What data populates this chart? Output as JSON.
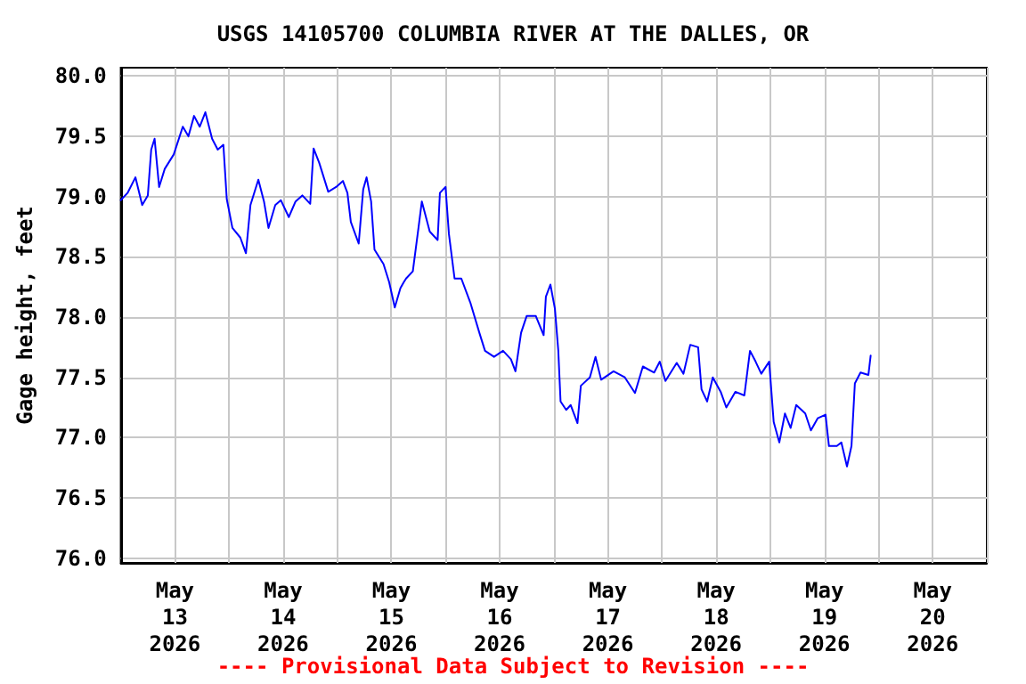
{
  "chart_data": {
    "type": "line",
    "title": "USGS 14105700 COLUMBIA RIVER AT THE DALLES, OR",
    "ylabel": "Gage height, feet",
    "annotations": [
      "---- Provisional Data Subject to Revision ----"
    ],
    "xlim": [
      "2026-05-13T00:00",
      "2026-05-21T00:00"
    ],
    "xticks": [
      {
        "value": "2026-05-13T00:00",
        "label": null
      },
      {
        "value": "2026-05-13T12:00",
        "label": "May\n13\n2026"
      },
      {
        "value": "2026-05-14T00:00",
        "label": null
      },
      {
        "value": "2026-05-14T12:00",
        "label": "May\n14\n2026"
      },
      {
        "value": "2026-05-15T00:00",
        "label": null
      },
      {
        "value": "2026-05-15T12:00",
        "label": "May\n15\n2026"
      },
      {
        "value": "2026-05-16T00:00",
        "label": null
      },
      {
        "value": "2026-05-16T12:00",
        "label": "May\n16\n2026"
      },
      {
        "value": "2026-05-17T00:00",
        "label": null
      },
      {
        "value": "2026-05-17T12:00",
        "label": "May\n17\n2026"
      },
      {
        "value": "2026-05-18T00:00",
        "label": null
      },
      {
        "value": "2026-05-18T12:00",
        "label": "May\n18\n2026"
      },
      {
        "value": "2026-05-19T00:00",
        "label": null
      },
      {
        "value": "2026-05-19T12:00",
        "label": "May\n19\n2026"
      },
      {
        "value": "2026-05-20T00:00",
        "label": null
      },
      {
        "value": "2026-05-20T12:00",
        "label": "May\n20\n2026"
      },
      {
        "value": "2026-05-21T00:00",
        "label": null
      }
    ],
    "ylim": [
      75.96,
      80.07
    ],
    "yticks": [
      {
        "value": 76,
        "label": "76.0"
      },
      {
        "value": 76.5,
        "label": "76.5"
      },
      {
        "value": 77,
        "label": "77.0"
      },
      {
        "value": 77.5,
        "label": "77.5"
      },
      {
        "value": 78,
        "label": "78.0"
      },
      {
        "value": 78.5,
        "label": "78.5"
      },
      {
        "value": 79,
        "label": "79.0"
      },
      {
        "value": 79.5,
        "label": "79.5"
      },
      {
        "value": 80,
        "label": "80.0"
      }
    ],
    "grid": true,
    "marker": "none",
    "line_style": "solid",
    "series": [
      {
        "color": "#0000ff",
        "x": [
          "2026-05-13T00:00",
          "2026-05-13T01:30",
          "2026-05-13T03:15",
          "2026-05-13T04:45",
          "2026-05-13T06:00",
          "2026-05-13T06:45",
          "2026-05-13T07:30",
          "2026-05-13T08:30",
          "2026-05-13T09:45",
          "2026-05-13T11:45",
          "2026-05-13T13:45",
          "2026-05-13T15:00",
          "2026-05-13T16:15",
          "2026-05-13T17:30",
          "2026-05-13T18:45",
          "2026-05-13T20:15",
          "2026-05-13T21:30",
          "2026-05-13T22:45",
          "2026-05-13T23:30",
          "2026-05-14T00:45",
          "2026-05-14T02:30",
          "2026-05-14T03:45",
          "2026-05-14T04:45",
          "2026-05-14T06:30",
          "2026-05-14T07:45",
          "2026-05-14T08:45",
          "2026-05-14T10:15",
          "2026-05-14T11:30",
          "2026-05-14T13:15",
          "2026-05-14T14:45",
          "2026-05-14T16:15",
          "2026-05-14T18:00",
          "2026-05-14T18:45",
          "2026-05-14T20:00",
          "2026-05-14T22:00",
          "2026-05-14T23:45",
          "2026-05-15T01:15",
          "2026-05-15T02:15",
          "2026-05-15T03:00",
          "2026-05-15T04:45",
          "2026-05-15T05:45",
          "2026-05-15T06:30",
          "2026-05-15T07:30",
          "2026-05-15T08:15",
          "2026-05-15T10:15",
          "2026-05-15T11:30",
          "2026-05-15T12:45",
          "2026-05-15T14:00",
          "2026-05-15T14:45",
          "2026-05-15T15:15",
          "2026-05-15T16:45",
          "2026-05-15T18:00",
          "2026-05-15T18:45",
          "2026-05-15T20:30",
          "2026-05-15T22:15",
          "2026-05-15T22:45",
          "2026-05-16T00:00",
          "2026-05-16T00:45",
          "2026-05-16T02:00",
          "2026-05-16T03:30",
          "2026-05-16T05:30",
          "2026-05-16T07:30",
          "2026-05-16T08:45",
          "2026-05-16T10:45",
          "2026-05-16T12:45",
          "2026-05-16T14:30",
          "2026-05-16T15:30",
          "2026-05-16T16:45",
          "2026-05-16T18:00",
          "2026-05-16T20:00",
          "2026-05-16T21:45",
          "2026-05-16T22:15",
          "2026-05-16T23:15",
          "2026-05-17T00:15",
          "2026-05-17T01:00",
          "2026-05-17T01:30",
          "2026-05-17T02:45",
          "2026-05-17T03:45",
          "2026-05-17T05:15",
          "2026-05-17T06:00",
          "2026-05-17T08:00",
          "2026-05-17T09:15",
          "2026-05-17T10:30",
          "2026-05-17T13:15",
          "2026-05-17T15:45",
          "2026-05-17T18:00",
          "2026-05-17T19:45",
          "2026-05-17T22:15",
          "2026-05-17T23:30",
          "2026-05-18T00:45",
          "2026-05-18T03:15",
          "2026-05-18T04:45",
          "2026-05-18T06:15",
          "2026-05-18T08:00",
          "2026-05-18T08:45",
          "2026-05-18T10:00",
          "2026-05-18T11:15",
          "2026-05-18T13:00",
          "2026-05-18T14:15",
          "2026-05-18T16:15",
          "2026-05-18T18:15",
          "2026-05-18T19:30",
          "2026-05-18T20:45",
          "2026-05-18T22:00",
          "2026-05-18T23:45",
          "2026-05-19T00:45",
          "2026-05-19T02:00",
          "2026-05-19T03:15",
          "2026-05-19T04:30",
          "2026-05-19T05:45",
          "2026-05-19T07:45",
          "2026-05-19T09:00",
          "2026-05-19T10:30",
          "2026-05-19T12:15",
          "2026-05-19T13:00",
          "2026-05-19T14:45",
          "2026-05-19T15:45",
          "2026-05-19T17:00",
          "2026-05-19T18:00",
          "2026-05-19T18:45",
          "2026-05-19T20:00",
          "2026-05-19T21:45",
          "2026-05-19T22:15"
        ],
        "values": [
          78.97,
          79.03,
          79.16,
          78.93,
          79.01,
          79.39,
          79.48,
          79.08,
          79.23,
          79.35,
          79.58,
          79.5,
          79.67,
          79.58,
          79.7,
          79.48,
          79.39,
          79.43,
          78.98,
          78.74,
          78.66,
          78.53,
          78.93,
          79.14,
          78.96,
          78.74,
          78.93,
          78.97,
          78.83,
          78.96,
          79.01,
          78.94,
          79.4,
          79.28,
          79.04,
          79.08,
          79.13,
          79.03,
          78.79,
          78.61,
          79.06,
          79.16,
          78.96,
          78.56,
          78.44,
          78.29,
          78.08,
          78.24,
          78.29,
          78.32,
          78.38,
          78.74,
          78.96,
          78.71,
          78.64,
          79.03,
          79.08,
          78.69,
          78.32,
          78.32,
          78.12,
          77.87,
          77.72,
          77.67,
          77.72,
          77.65,
          77.55,
          77.87,
          78.01,
          78.01,
          77.85,
          78.17,
          78.27,
          78.07,
          77.72,
          77.3,
          77.23,
          77.27,
          77.12,
          77.43,
          77.5,
          77.67,
          77.48,
          77.55,
          77.5,
          77.37,
          77.59,
          77.54,
          77.63,
          77.47,
          77.62,
          77.53,
          77.77,
          77.75,
          77.4,
          77.3,
          77.5,
          77.38,
          77.25,
          77.38,
          77.35,
          77.72,
          77.63,
          77.53,
          77.63,
          77.13,
          76.96,
          77.2,
          77.08,
          77.27,
          77.2,
          77.06,
          77.16,
          77.19,
          76.93,
          76.93,
          76.96,
          76.76,
          76.93,
          77.45,
          77.54,
          77.52,
          77.68
        ]
      }
    ]
  }
}
